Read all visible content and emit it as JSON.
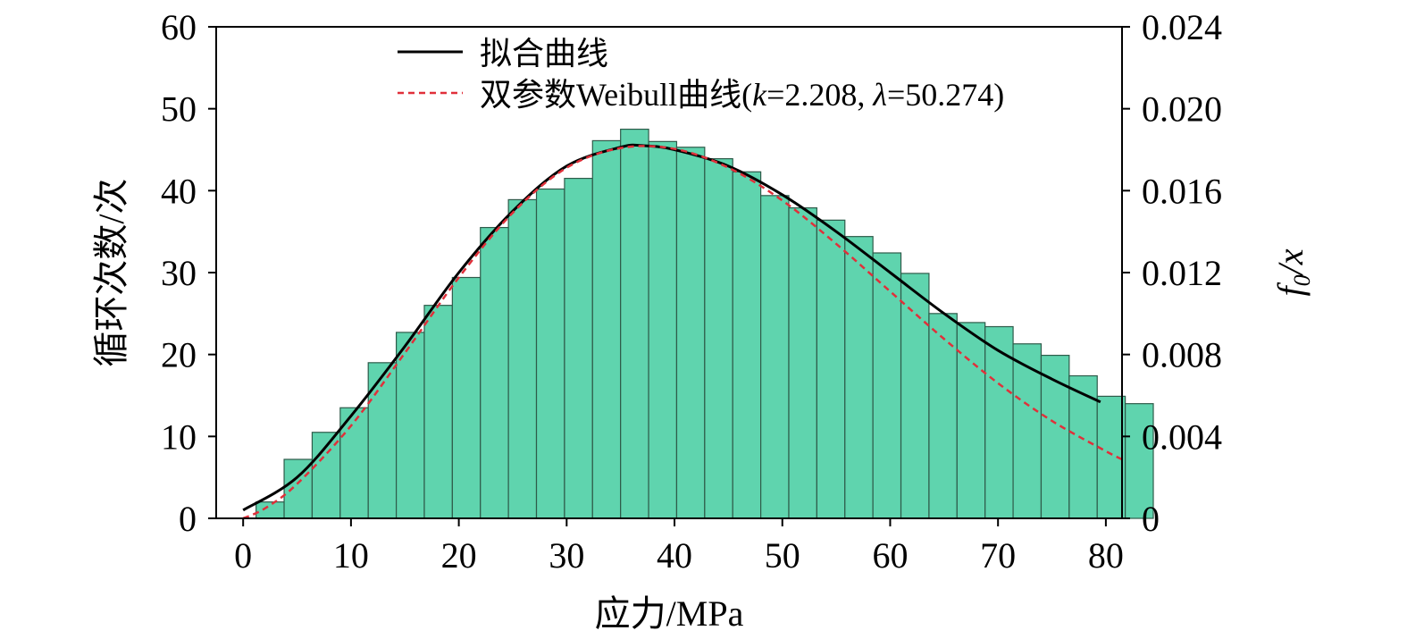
{
  "chart_data": {
    "type": "bar",
    "xlabel": "应力/MPa",
    "ylabel": "循环次数/次",
    "y2label": {
      "main": "f",
      "sub": "0",
      "tail": "/x"
    },
    "xlim": [
      -2.5,
      81.5
    ],
    "ylim": [
      0,
      60
    ],
    "y2lim": [
      0,
      0.024
    ],
    "x_ticks": [
      0,
      10,
      20,
      30,
      40,
      50,
      60,
      70,
      80
    ],
    "y_ticks": [
      0,
      10,
      20,
      30,
      40,
      50,
      60
    ],
    "y2_ticks": [
      "0",
      "0.004",
      "0.008",
      "0.012",
      "0.016",
      "0.020",
      "0.024"
    ],
    "bin_start": 1.2,
    "bin_width": 2.6,
    "histogram": {
      "values": [
        2,
        7.2,
        10.5,
        13.5,
        19,
        22.7,
        26,
        29.4,
        35.5,
        38.9,
        40.2,
        41.5,
        46.1,
        47.5,
        46,
        45.3,
        43.9,
        42.3,
        39.4,
        37.9,
        36.4,
        34.4,
        32.4,
        29.9,
        25,
        23.9,
        23.4,
        21.3,
        19.9,
        17.4,
        14.9,
        14
      ],
      "color": "#5fd4ae",
      "edge": "#2e5b4a"
    },
    "series": [
      {
        "name": "拟合曲线",
        "style": "solid",
        "color": "#000000",
        "x": [
          0,
          5,
          10,
          15,
          20,
          25,
          30,
          35,
          37,
          40,
          45,
          50,
          55,
          60,
          65,
          70,
          75,
          79.5
        ],
        "y": [
          1,
          5,
          12.5,
          21,
          30,
          37.5,
          43,
          45.3,
          45.5,
          45,
          43,
          39.5,
          35,
          30,
          25,
          20.5,
          17,
          14.2
        ]
      },
      {
        "name": "双参数Weibull曲线",
        "name_params": "(k=2.208, λ=50.274)",
        "style": "dashed",
        "color": "#e0303a",
        "x": [
          0,
          2,
          5,
          10,
          15,
          20,
          25,
          30,
          35,
          40,
          45,
          50,
          55,
          60,
          65,
          70,
          75,
          80,
          81.5
        ],
        "y": [
          0,
          1.2,
          4.2,
          11.3,
          20.2,
          29.4,
          37.3,
          42.8,
          45.2,
          45.1,
          42.8,
          38.8,
          33.5,
          27.7,
          21.9,
          16.5,
          11.9,
          8.2,
          7.2
        ]
      }
    ],
    "legend": {
      "placement": "top-center",
      "fit_label": "拟合曲线",
      "weibull_label_prefix": "双参数Weibull曲线(",
      "k_symbol": "k",
      "k_value": "=2.208, ",
      "lambda_symbol": "λ",
      "lambda_value": "=50.274)"
    },
    "grid": false
  }
}
